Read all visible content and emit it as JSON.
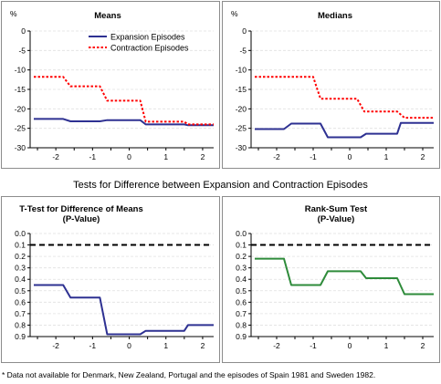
{
  "section_title": "Tests for Difference between Expansion and Contraction Episodes",
  "footnote": "* Data not available for Denmark, New Zealand, Portugal and the episodes of Spain 1981 and Sweden 1982.",
  "colors": {
    "expansion": "#2e3192",
    "contraction": "#ff0000",
    "pvalue_means": "#2e3192",
    "pvalue_ranksum": "#2e8b3a",
    "threshold": "#000000",
    "axis": "#000000",
    "grid": "#e0e0e0"
  },
  "chart_data": [
    {
      "id": "means",
      "type": "line",
      "title": "Means",
      "unit_label": "%",
      "xlim": [
        -2.7,
        2.3
      ],
      "ylim": [
        -30,
        0
      ],
      "yticks": [
        0,
        -5,
        -10,
        -15,
        -20,
        -25,
        -30
      ],
      "xticks": [
        -2,
        -1,
        0,
        1,
        2
      ],
      "legend": "top-right",
      "series": [
        {
          "name": "Expansion Episodes",
          "style": "solid",
          "color": "#2e3192",
          "x": [
            -2.6,
            -1.8,
            -1.6,
            -0.8,
            -0.6,
            0.3,
            0.45,
            1.5,
            1.6,
            2.3
          ],
          "y": [
            -22.6,
            -22.6,
            -23.2,
            -23.2,
            -22.9,
            -22.9,
            -24.0,
            -24.0,
            -24.2,
            -24.2
          ]
        },
        {
          "name": "Contraction Episodes",
          "style": "dotted",
          "color": "#ff0000",
          "x": [
            -2.6,
            -1.8,
            -1.6,
            -0.8,
            -0.6,
            0.3,
            0.45,
            1.5,
            1.6,
            2.3
          ],
          "y": [
            -11.8,
            -11.8,
            -14.2,
            -14.2,
            -17.9,
            -17.9,
            -23.3,
            -23.3,
            -24.0,
            -24.0
          ]
        }
      ]
    },
    {
      "id": "medians",
      "type": "line",
      "title": "Medians",
      "unit_label": "%",
      "xlim": [
        -2.7,
        2.3
      ],
      "ylim": [
        -30,
        0
      ],
      "yticks": [
        0,
        -5,
        -10,
        -15,
        -20,
        -25,
        -30
      ],
      "xticks": [
        -2,
        -1,
        0,
        1,
        2
      ],
      "legend": "none",
      "series": [
        {
          "name": "Expansion Episodes",
          "style": "solid",
          "color": "#2e3192",
          "x": [
            -2.6,
            -1.8,
            -1.6,
            -0.8,
            -0.6,
            0.3,
            0.45,
            1.3,
            1.4,
            2.3
          ],
          "y": [
            -25.2,
            -25.2,
            -23.8,
            -23.8,
            -27.3,
            -27.3,
            -26.4,
            -26.4,
            -23.6,
            -23.6
          ]
        },
        {
          "name": "Contraction Episodes",
          "style": "dotted",
          "color": "#ff0000",
          "x": [
            -2.6,
            -1.0,
            -0.8,
            0.2,
            0.4,
            1.3,
            1.5,
            2.3
          ],
          "y": [
            -11.8,
            -11.8,
            -17.4,
            -17.4,
            -20.7,
            -20.7,
            -22.3,
            -22.3
          ]
        }
      ]
    },
    {
      "id": "ttest",
      "type": "line",
      "title": "T-Test for Difference of Means",
      "subtitle": "(P-Value)",
      "xlim": [
        -2.7,
        2.3
      ],
      "ylim": [
        0,
        0.9
      ],
      "y_inverted": true,
      "yticks": [
        0.0,
        0.1,
        0.2,
        0.3,
        0.4,
        0.5,
        0.6,
        0.7,
        0.8,
        0.9
      ],
      "ytick_labels": [
        "0.0",
        "0.1",
        "0.2",
        "0.3",
        "0.4",
        "0.5",
        "0.6",
        "0.7",
        "0.8",
        "0.9"
      ],
      "xticks": [
        -2,
        -1,
        0,
        1,
        2
      ],
      "threshold": 0.1,
      "series": [
        {
          "style": "solid",
          "color": "#2e3192",
          "x": [
            -2.6,
            -1.8,
            -1.6,
            -0.8,
            -0.6,
            0.3,
            0.45,
            1.5,
            1.6,
            2.3
          ],
          "y": [
            0.45,
            0.45,
            0.56,
            0.56,
            0.88,
            0.88,
            0.85,
            0.85,
            0.8,
            0.8
          ]
        }
      ]
    },
    {
      "id": "ranksum",
      "type": "line",
      "title": "Rank-Sum Test",
      "subtitle": "(P-Value)",
      "xlim": [
        -2.7,
        2.3
      ],
      "ylim": [
        0,
        0.9
      ],
      "y_inverted": true,
      "yticks": [
        0.0,
        0.1,
        0.2,
        0.3,
        0.4,
        0.5,
        0.6,
        0.7,
        0.8,
        0.9
      ],
      "ytick_labels": [
        "0.0",
        "0.1",
        "0.2",
        "0.3",
        "0.4",
        "0.5",
        "0.6",
        "0.7",
        "0.8",
        "0.9"
      ],
      "xticks": [
        -2,
        -1,
        0,
        1,
        2
      ],
      "threshold": 0.1,
      "series": [
        {
          "style": "solid",
          "color": "#2e8b3a",
          "x": [
            -2.6,
            -1.8,
            -1.6,
            -0.8,
            -0.6,
            0.3,
            0.45,
            1.3,
            1.5,
            2.3
          ],
          "y": [
            0.22,
            0.22,
            0.45,
            0.45,
            0.33,
            0.33,
            0.39,
            0.39,
            0.53,
            0.53
          ]
        }
      ]
    }
  ]
}
